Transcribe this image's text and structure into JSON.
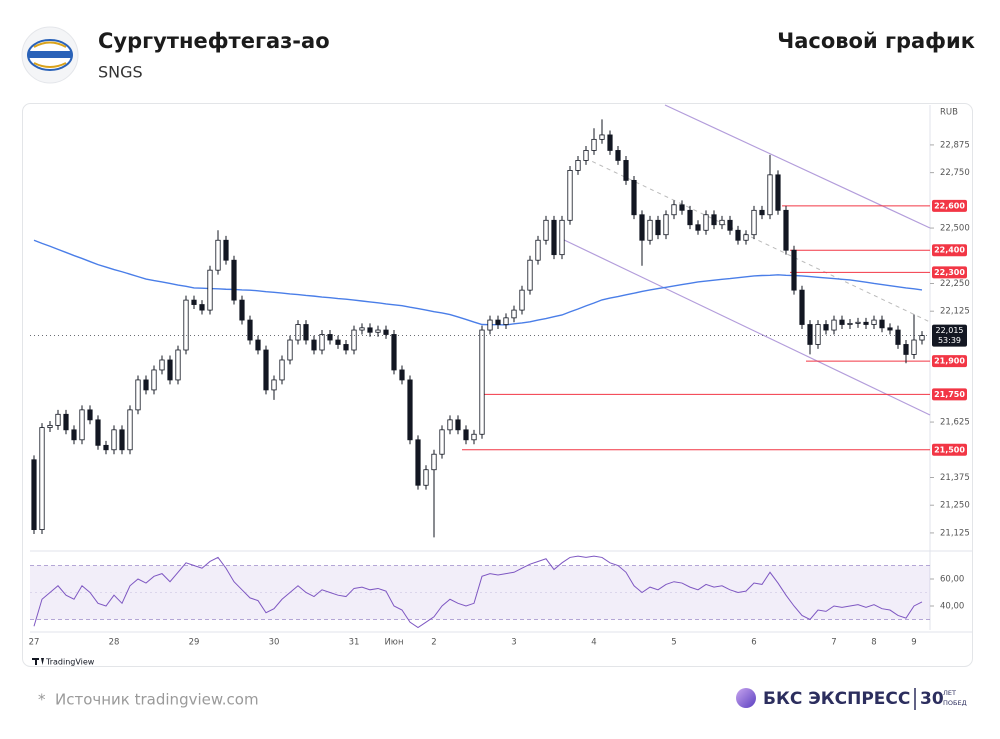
{
  "header": {
    "title": "Сургутнефтегаз-ао",
    "ticker": "SNGS",
    "chart_label": "Часовой график"
  },
  "chart_data": {
    "type": "candlestick",
    "currency": "RUB",
    "watermark": "TradingView",
    "categories": [
      "27",
      null,
      null,
      null,
      null,
      null,
      null,
      null,
      null,
      null,
      "28",
      null,
      null,
      null,
      null,
      null,
      null,
      null,
      null,
      null,
      "29",
      null,
      null,
      null,
      null,
      null,
      null,
      null,
      null,
      null,
      "30",
      null,
      null,
      null,
      null,
      null,
      null,
      null,
      null,
      null,
      "31",
      null,
      null,
      null,
      null,
      "Июн",
      null,
      null,
      null,
      null,
      "2",
      null,
      null,
      null,
      null,
      null,
      null,
      null,
      null,
      null,
      "3",
      null,
      null,
      null,
      null,
      null,
      null,
      null,
      null,
      null,
      "4",
      null,
      null,
      null,
      null,
      null,
      null,
      null,
      null,
      null,
      "5",
      null,
      null,
      null,
      null,
      null,
      null,
      null,
      null,
      null,
      "6",
      null,
      null,
      null,
      null,
      null,
      null,
      null,
      null,
      null,
      "7",
      null,
      null,
      null,
      null,
      "8",
      null,
      null,
      null,
      null,
      "9",
      null
    ],
    "open": [
      21.455,
      21.14,
      21.6,
      21.61,
      21.66,
      21.59,
      21.545,
      21.68,
      21.635,
      21.52,
      21.5,
      21.59,
      21.5,
      21.68,
      21.815,
      21.77,
      21.86,
      21.905,
      21.815,
      21.95,
      22.175,
      22.155,
      22.13,
      22.31,
      22.445,
      22.355,
      22.175,
      22.085,
      21.995,
      21.95,
      21.77,
      21.815,
      21.905,
      21.995,
      22.065,
      21.995,
      21.95,
      22.02,
      21.995,
      21.975,
      21.95,
      22.04,
      22.05,
      22.03,
      22.04,
      22.02,
      21.86,
      21.815,
      21.545,
      21.34,
      21.41,
      21.48,
      21.59,
      21.635,
      21.59,
      21.545,
      21.57,
      22.04,
      22.085,
      22.065,
      22.095,
      22.13,
      22.22,
      22.355,
      22.445,
      22.535,
      22.38,
      22.535,
      22.76,
      22.805,
      22.85,
      22.9,
      22.92,
      22.85,
      22.805,
      22.715,
      22.56,
      22.445,
      22.535,
      22.47,
      22.56,
      22.605,
      22.58,
      22.515,
      22.49,
      22.56,
      22.515,
      22.535,
      22.49,
      22.445,
      22.47,
      22.58,
      22.56,
      22.74,
      22.58,
      22.4,
      22.22,
      22.065,
      21.975,
      22.065,
      22.04,
      22.085,
      22.065,
      22.07,
      22.075,
      22.065,
      22.085,
      22.05,
      22.04,
      21.975,
      21.93,
      21.995
    ],
    "high": [
      21.475,
      21.62,
      21.63,
      21.68,
      21.68,
      21.61,
      21.7,
      21.7,
      21.655,
      21.54,
      21.61,
      21.61,
      21.7,
      21.835,
      21.835,
      21.88,
      21.925,
      21.925,
      21.97,
      22.195,
      22.195,
      22.175,
      22.33,
      22.49,
      22.465,
      22.375,
      22.195,
      22.105,
      22.015,
      21.97,
      21.835,
      21.925,
      22.015,
      22.085,
      22.085,
      22.015,
      22.04,
      22.04,
      22.015,
      21.995,
      22.06,
      22.07,
      22.07,
      22.06,
      22.06,
      22.04,
      21.88,
      21.835,
      21.565,
      21.43,
      21.5,
      21.61,
      21.655,
      21.655,
      21.61,
      21.59,
      22.06,
      22.105,
      22.105,
      22.115,
      22.15,
      22.24,
      22.375,
      22.465,
      22.555,
      22.555,
      22.555,
      22.78,
      22.825,
      22.87,
      22.95,
      22.99,
      22.94,
      22.87,
      22.825,
      22.735,
      22.58,
      22.555,
      22.555,
      22.58,
      22.625,
      22.625,
      22.6,
      22.535,
      22.58,
      22.58,
      22.555,
      22.555,
      22.51,
      22.49,
      22.6,
      22.6,
      22.83,
      22.76,
      22.6,
      22.42,
      22.24,
      22.085,
      22.085,
      22.085,
      22.105,
      22.105,
      22.09,
      22.095,
      22.095,
      22.105,
      22.105,
      22.07,
      22.06,
      21.995,
      22.11,
      22.035
    ],
    "low": [
      21.12,
      21.12,
      21.58,
      21.59,
      21.57,
      21.525,
      21.525,
      21.615,
      21.5,
      21.48,
      21.48,
      21.48,
      21.48,
      21.66,
      21.75,
      21.75,
      21.84,
      21.795,
      21.795,
      21.93,
      22.135,
      22.11,
      22.11,
      22.29,
      22.335,
      22.155,
      22.065,
      21.975,
      21.93,
      21.75,
      21.725,
      21.795,
      21.885,
      21.975,
      21.975,
      21.93,
      21.93,
      21.975,
      21.955,
      21.93,
      21.93,
      22.02,
      22.01,
      22.01,
      22.0,
      21.84,
      21.795,
      21.525,
      21.32,
      21.32,
      21.105,
      21.46,
      21.57,
      21.57,
      21.525,
      21.525,
      21.55,
      22.02,
      22.045,
      22.045,
      22.075,
      22.11,
      22.2,
      22.335,
      22.425,
      22.36,
      22.36,
      22.515,
      22.74,
      22.785,
      22.83,
      22.88,
      22.83,
      22.785,
      22.695,
      22.54,
      22.33,
      22.425,
      22.45,
      22.45,
      22.54,
      22.56,
      22.495,
      22.47,
      22.47,
      22.495,
      22.495,
      22.47,
      22.425,
      22.425,
      22.45,
      22.54,
      22.54,
      22.56,
      22.38,
      22.2,
      22.045,
      21.93,
      21.955,
      22.02,
      22.02,
      22.045,
      22.045,
      22.05,
      22.045,
      22.045,
      22.03,
      22.02,
      21.955,
      21.89,
      21.91,
      21.975
    ],
    "close": [
      21.14,
      21.6,
      21.61,
      21.66,
      21.59,
      21.545,
      21.68,
      21.635,
      21.52,
      21.5,
      21.59,
      21.5,
      21.68,
      21.815,
      21.77,
      21.86,
      21.905,
      21.815,
      21.95,
      22.175,
      22.155,
      22.13,
      22.31,
      22.445,
      22.355,
      22.175,
      22.085,
      21.995,
      21.95,
      21.77,
      21.815,
      21.905,
      21.995,
      22.065,
      21.995,
      21.95,
      22.02,
      21.995,
      21.975,
      21.95,
      22.04,
      22.05,
      22.03,
      22.04,
      22.02,
      21.86,
      21.815,
      21.545,
      21.34,
      21.41,
      21.48,
      21.59,
      21.635,
      21.59,
      21.545,
      21.57,
      22.04,
      22.085,
      22.065,
      22.095,
      22.13,
      22.22,
      22.355,
      22.445,
      22.535,
      22.38,
      22.535,
      22.76,
      22.805,
      22.85,
      22.9,
      22.92,
      22.85,
      22.805,
      22.715,
      22.56,
      22.445,
      22.535,
      22.47,
      22.56,
      22.605,
      22.58,
      22.515,
      22.49,
      22.56,
      22.515,
      22.535,
      22.49,
      22.445,
      22.47,
      22.58,
      22.56,
      22.74,
      22.58,
      22.4,
      22.22,
      22.065,
      21.975,
      22.065,
      22.04,
      22.085,
      22.065,
      22.07,
      22.075,
      22.065,
      22.085,
      22.05,
      22.04,
      21.975,
      21.93,
      21.995,
      22.015
    ],
    "up_color": "#ffffff",
    "down_color": "#131722",
    "edge_color": "#131722",
    "ylim": [
      21.057,
      23.055
    ],
    "yticks": [
      {
        "value": 22.875,
        "label": "22,875"
      },
      {
        "value": 22.75,
        "label": "22,750"
      },
      {
        "value": 22.5,
        "label": "22,500"
      },
      {
        "value": 22.25,
        "label": "22,250"
      },
      {
        "value": 22.125,
        "label": "22,125"
      },
      {
        "value": 21.625,
        "label": "21,625"
      },
      {
        "value": 21.375,
        "label": "21,375"
      },
      {
        "value": 21.25,
        "label": "21,250"
      },
      {
        "value": 21.125,
        "label": "21,125"
      }
    ],
    "moving_average": {
      "color": "#4a7ee8",
      "values": [
        22.445,
        22.431,
        22.418,
        22.404,
        22.39,
        22.376,
        22.363,
        22.349,
        22.335,
        22.324,
        22.313,
        22.303,
        22.292,
        22.281,
        22.27,
        22.263,
        22.257,
        22.25,
        22.243,
        22.237,
        22.23,
        22.229,
        22.227,
        22.226,
        22.224,
        22.223,
        22.221,
        22.22,
        22.217,
        22.213,
        22.21,
        22.207,
        22.203,
        22.2,
        22.196,
        22.193,
        22.189,
        22.186,
        22.182,
        22.179,
        22.175,
        22.171,
        22.167,
        22.163,
        22.158,
        22.154,
        22.15,
        22.143,
        22.137,
        22.13,
        22.123,
        22.117,
        22.11,
        22.099,
        22.088,
        22.076,
        22.065,
        22.064,
        22.064,
        22.063,
        22.068,
        22.072,
        22.077,
        22.085,
        22.092,
        22.1,
        22.108,
        22.122,
        22.135,
        22.149,
        22.162,
        22.176,
        22.184,
        22.191,
        22.199,
        22.206,
        22.214,
        22.221,
        22.227,
        22.233,
        22.239,
        22.245,
        22.251,
        22.257,
        22.261,
        22.265,
        22.269,
        22.272,
        22.276,
        22.28,
        22.284,
        22.286,
        22.287,
        22.289,
        22.287,
        22.286,
        22.284,
        22.281,
        22.278,
        22.275,
        22.272,
        22.269,
        22.266,
        22.261,
        22.256,
        22.25,
        22.245,
        22.24,
        22.235,
        22.23,
        22.226,
        22.221
      ]
    },
    "levels": [
      {
        "value": 22.6,
        "label": "22,600"
      },
      {
        "value": 22.4,
        "label": "22,400"
      },
      {
        "value": 22.3,
        "label": "22,300"
      },
      {
        "value": 21.9,
        "label": "21,900"
      },
      {
        "value": 21.75,
        "label": "21,750"
      },
      {
        "value": 21.5,
        "label": "21,500"
      }
    ],
    "level_color": "#f23645",
    "last_price": {
      "value": 22.015,
      "label": "22,015"
    },
    "countdown": "53:39",
    "rsi": {
      "color": "#7e57c2",
      "ylim": [
        22.2,
        77.8
      ],
      "bands": [
        70,
        30
      ],
      "yticks": [
        {
          "value": 60,
          "label": "60,00"
        },
        {
          "value": 40,
          "label": "40,00"
        }
      ],
      "values": [
        25,
        45,
        50,
        55,
        48,
        45,
        55,
        50,
        42,
        40,
        48,
        42,
        55,
        60,
        57,
        62,
        64,
        58,
        65,
        72,
        70,
        68,
        73,
        76,
        68,
        58,
        52,
        46,
        44,
        35,
        38,
        45,
        50,
        55,
        50,
        47,
        52,
        50,
        48,
        47,
        53,
        54,
        52,
        53,
        51,
        40,
        37,
        28,
        24,
        28,
        32,
        40,
        45,
        42,
        40,
        42,
        62,
        64,
        63,
        64,
        65,
        68,
        71,
        73,
        75,
        67,
        72,
        76,
        77,
        76,
        77,
        76,
        72,
        70,
        65,
        55,
        50,
        54,
        52,
        56,
        58,
        57,
        54,
        52,
        56,
        54,
        55,
        52,
        50,
        51,
        57,
        56,
        65,
        57,
        48,
        40,
        33,
        30,
        37,
        36,
        40,
        39,
        40,
        41,
        39,
        41,
        38,
        37,
        33,
        31,
        40,
        43
      ]
    }
  },
  "footer": {
    "source_mark": "*",
    "source": "Источник tradingview.com",
    "brand": "БКС ЭКСПРЕСС",
    "anniversary": "30",
    "anniversary_top": "ЛЕТ",
    "anniversary_bottom": "ПОБЕД"
  }
}
